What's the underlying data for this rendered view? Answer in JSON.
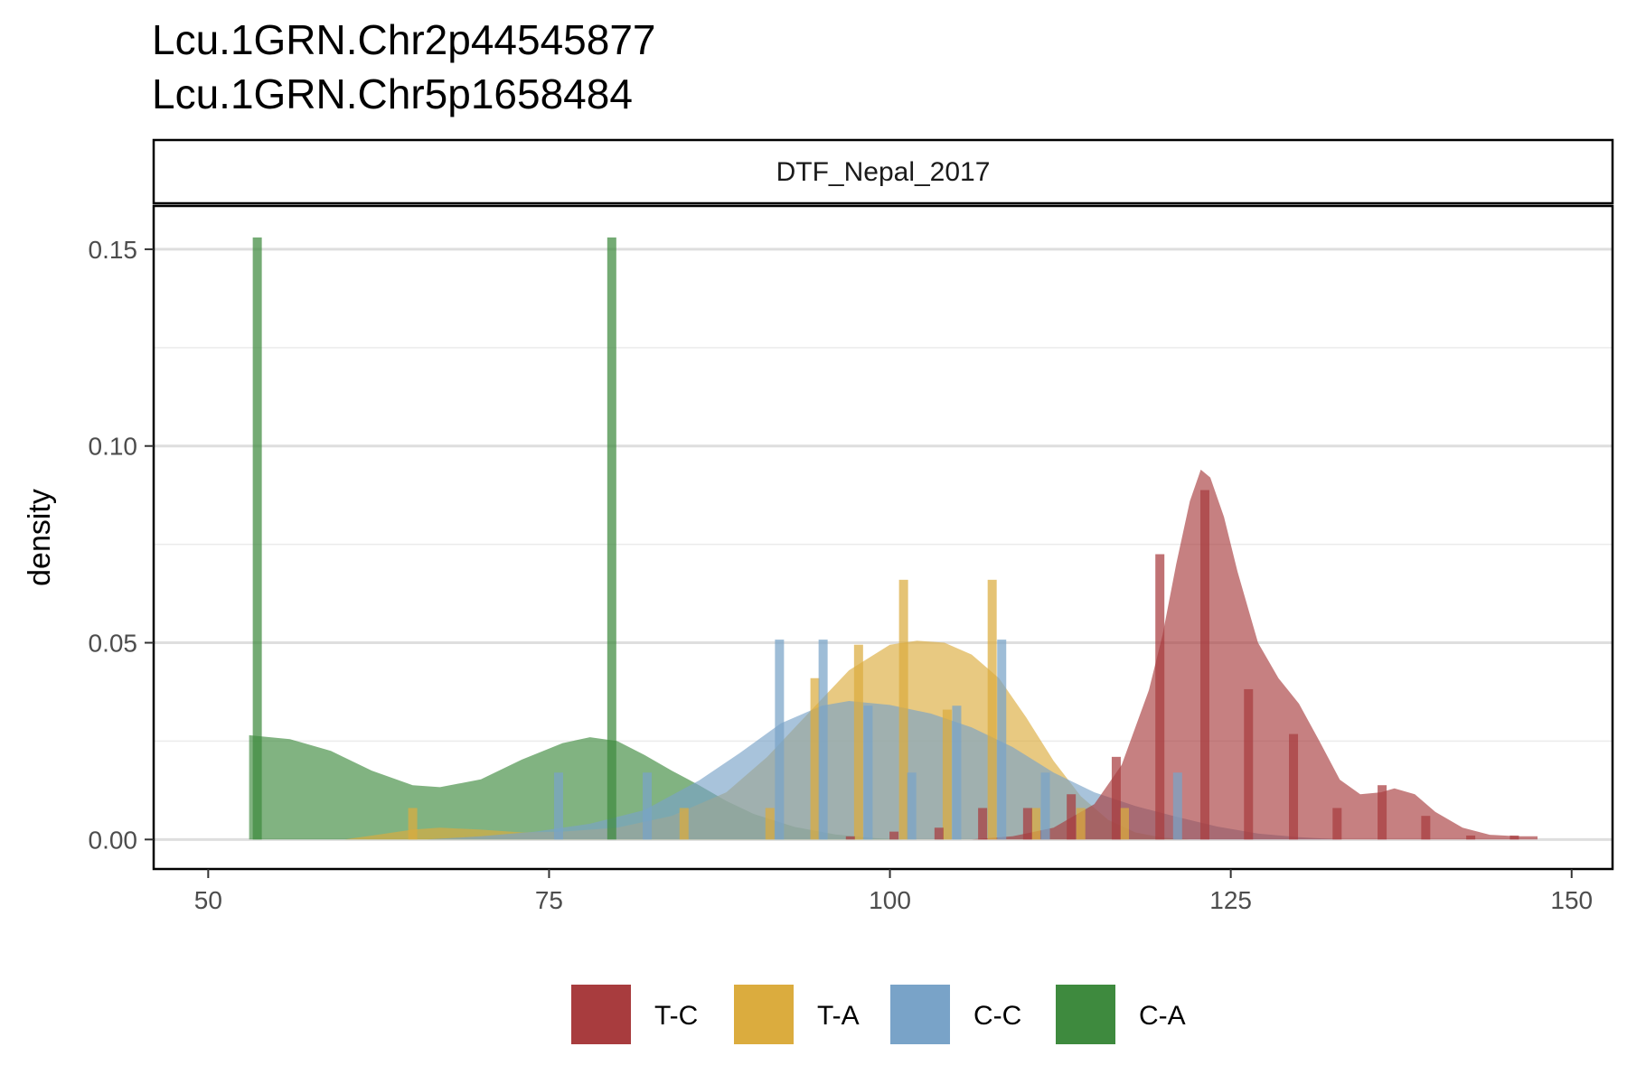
{
  "chart_data": {
    "type": "area",
    "title_lines": [
      "Lcu.1GRN.Chr2p44545877",
      "Lcu.1GRN.Chr5p1658484"
    ],
    "facet_label": "DTF_Nepal_2017",
    "xlabel": "",
    "ylabel": "density",
    "xlim": [
      46,
      153
    ],
    "ylim": [
      -0.0075,
      0.161
    ],
    "x_ticks": [
      50,
      75,
      100,
      125,
      150
    ],
    "y_ticks": [
      0,
      0.05,
      0.1,
      0.15
    ],
    "x_tick_labels": [
      "50",
      "75",
      "100",
      "125",
      "150"
    ],
    "y_tick_labels": [
      "0.00",
      "0.05",
      "0.10",
      "0.15"
    ],
    "y_minor_gridlines": [
      0.025,
      0.075,
      0.125
    ],
    "grid": true,
    "legend_position": "bottom",
    "series": [
      {
        "name": "C-A",
        "color": "#3e8a3e",
        "histogram": [
          {
            "x": 53.6,
            "y": 0.153
          },
          {
            "x": 79.6,
            "y": 0.153
          }
        ],
        "density": [
          [
            53,
            0.0265
          ],
          [
            56,
            0.0255
          ],
          [
            59,
            0.0225
          ],
          [
            62,
            0.0175
          ],
          [
            65,
            0.0138
          ],
          [
            67,
            0.0133
          ],
          [
            70,
            0.0153
          ],
          [
            73,
            0.0203
          ],
          [
            76,
            0.0245
          ],
          [
            78,
            0.026
          ],
          [
            80,
            0.025
          ],
          [
            82,
            0.0215
          ],
          [
            84,
            0.0175
          ],
          [
            86,
            0.0138
          ],
          [
            88,
            0.0098
          ],
          [
            90,
            0.0065
          ],
          [
            93,
            0.0032
          ],
          [
            96,
            0.0013
          ],
          [
            99,
            0.0003
          ],
          [
            101,
            0
          ]
        ]
      },
      {
        "name": "T-A",
        "color": "#dbac3e",
        "histogram": [
          {
            "x": 65.0,
            "y": 0.008
          },
          {
            "x": 84.9,
            "y": 0.008
          },
          {
            "x": 91.2,
            "y": 0.008
          },
          {
            "x": 94.5,
            "y": 0.041
          },
          {
            "x": 97.7,
            "y": 0.0495
          },
          {
            "x": 101.0,
            "y": 0.066
          },
          {
            "x": 104.2,
            "y": 0.033
          },
          {
            "x": 107.5,
            "y": 0.066
          },
          {
            "x": 110.7,
            "y": 0.008
          },
          {
            "x": 114.0,
            "y": 0.008
          },
          {
            "x": 117.2,
            "y": 0.008
          }
        ],
        "density": [
          [
            60,
            0
          ],
          [
            62,
            0.001
          ],
          [
            65,
            0.0025
          ],
          [
            67,
            0.003
          ],
          [
            70,
            0.0025
          ],
          [
            73,
            0.0018
          ],
          [
            76,
            0.002
          ],
          [
            80,
            0.003
          ],
          [
            84,
            0.006
          ],
          [
            88,
            0.012
          ],
          [
            91,
            0.021
          ],
          [
            94,
            0.032
          ],
          [
            97,
            0.043
          ],
          [
            100,
            0.0495
          ],
          [
            102,
            0.0505
          ],
          [
            104,
            0.05
          ],
          [
            106,
            0.047
          ],
          [
            108,
            0.041
          ],
          [
            110,
            0.031
          ],
          [
            112,
            0.02
          ],
          [
            114,
            0.011
          ],
          [
            116,
            0.005
          ],
          [
            118,
            0.0018
          ],
          [
            120,
            0.0005
          ],
          [
            122,
            0
          ]
        ]
      },
      {
        "name": "C-C",
        "color": "#79a3c8",
        "histogram": [
          {
            "x": 75.7,
            "y": 0.017
          },
          {
            "x": 82.2,
            "y": 0.017
          },
          {
            "x": 91.9,
            "y": 0.0508
          },
          {
            "x": 95.1,
            "y": 0.0508
          },
          {
            "x": 98.4,
            "y": 0.034
          },
          {
            "x": 101.6,
            "y": 0.017
          },
          {
            "x": 104.9,
            "y": 0.034
          },
          {
            "x": 108.2,
            "y": 0.0508
          },
          {
            "x": 111.4,
            "y": 0.017
          },
          {
            "x": 121.1,
            "y": 0.017
          }
        ],
        "density": [
          [
            66,
            0
          ],
          [
            70,
            0.0008
          ],
          [
            74,
            0.002
          ],
          [
            78,
            0.004
          ],
          [
            82,
            0.0075
          ],
          [
            86,
            0.015
          ],
          [
            89,
            0.022
          ],
          [
            92,
            0.0295
          ],
          [
            95,
            0.034
          ],
          [
            97,
            0.0352
          ],
          [
            100,
            0.0342
          ],
          [
            103,
            0.032
          ],
          [
            106,
            0.0285
          ],
          [
            109,
            0.0235
          ],
          [
            112,
            0.017
          ],
          [
            115,
            0.012
          ],
          [
            118,
            0.0085
          ],
          [
            121,
            0.0058
          ],
          [
            124,
            0.0033
          ],
          [
            127,
            0.0015
          ],
          [
            130,
            0.0006
          ],
          [
            133,
            0
          ]
        ]
      },
      {
        "name": "T-C",
        "color": "#a83c3e",
        "histogram": [
          {
            "x": 97.1,
            "y": 0.0008
          },
          {
            "x": 100.3,
            "y": 0.002
          },
          {
            "x": 103.6,
            "y": 0.003
          },
          {
            "x": 106.8,
            "y": 0.008
          },
          {
            "x": 110.1,
            "y": 0.008
          },
          {
            "x": 113.3,
            "y": 0.0115
          },
          {
            "x": 116.6,
            "y": 0.021
          },
          {
            "x": 119.8,
            "y": 0.0725
          },
          {
            "x": 123.1,
            "y": 0.0888
          },
          {
            "x": 126.3,
            "y": 0.0382
          },
          {
            "x": 129.6,
            "y": 0.0268
          },
          {
            "x": 132.8,
            "y": 0.008
          },
          {
            "x": 136.1,
            "y": 0.0138
          },
          {
            "x": 139.3,
            "y": 0.006
          },
          {
            "x": 142.6,
            "y": 0.001
          },
          {
            "x": 145.8,
            "y": 0.001
          }
        ],
        "density": [
          [
            106,
            0
          ],
          [
            109,
            0.0008
          ],
          [
            112,
            0.003
          ],
          [
            115,
            0.009
          ],
          [
            117,
            0.019
          ],
          [
            119,
            0.038
          ],
          [
            120,
            0.052
          ],
          [
            121,
            0.07
          ],
          [
            122,
            0.086
          ],
          [
            122.8,
            0.094
          ],
          [
            123.5,
            0.092
          ],
          [
            124.5,
            0.082
          ],
          [
            125.5,
            0.068
          ],
          [
            127,
            0.05
          ],
          [
            128.5,
            0.041
          ],
          [
            130,
            0.0345
          ],
          [
            131.5,
            0.025
          ],
          [
            133,
            0.0152
          ],
          [
            134.5,
            0.0115
          ],
          [
            136,
            0.012
          ],
          [
            137,
            0.013
          ],
          [
            138.5,
            0.0115
          ],
          [
            140,
            0.007
          ],
          [
            142,
            0.003
          ],
          [
            144,
            0.0012
          ],
          [
            146,
            0.0008
          ],
          [
            147.5,
            0.0008
          ],
          [
            147.5,
            0
          ]
        ]
      }
    ],
    "legend": [
      "T-C",
      "T-A",
      "C-C",
      "C-A"
    ]
  }
}
